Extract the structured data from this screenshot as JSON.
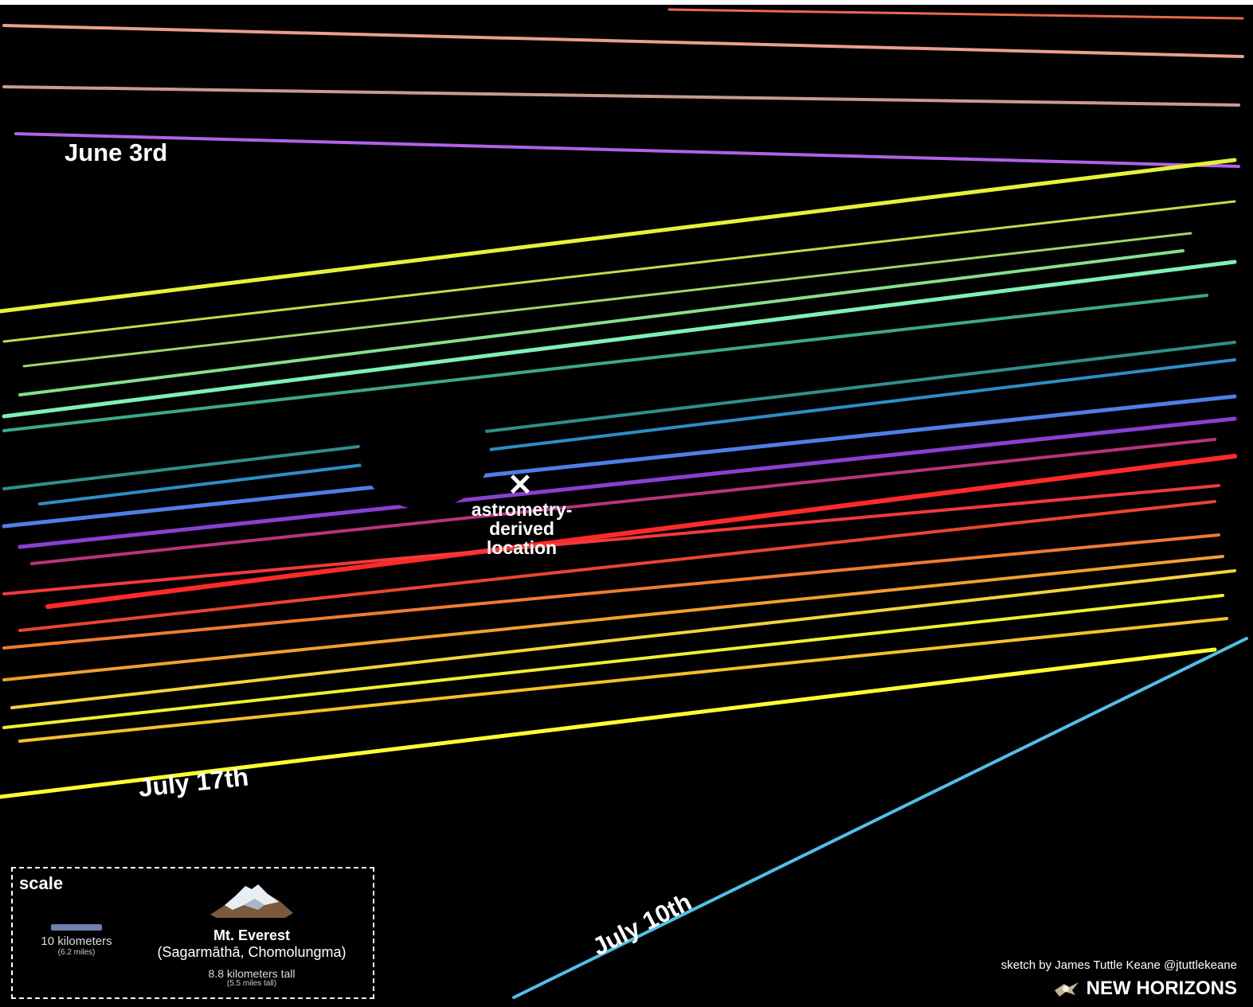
{
  "labels": {
    "start_date": "June 3rd",
    "end_date": "July 17th",
    "special_date": "July 10th",
    "center_marker": "✕",
    "center_label": [
      "astrometry-",
      "derived",
      "location"
    ]
  },
  "chords": [
    {
      "color": "#e86a4e"
    },
    {
      "color": "#e8a08c"
    },
    {
      "color": "#c99a90"
    },
    {
      "color": "#b062e6"
    },
    {
      "color": "#e6f238"
    },
    {
      "color": "#c9d84a"
    },
    {
      "color": "#9ed66a"
    },
    {
      "color": "#86e08a"
    },
    {
      "color": "#7ff0b6"
    },
    {
      "color": "#3da88a"
    },
    {
      "color": "#2f8f8c"
    },
    {
      "color": "#2d8ec4"
    },
    {
      "color": "#4f7ee6"
    },
    {
      "color": "#8a3fd0"
    },
    {
      "color": "#b8347c"
    },
    {
      "color": "#ff2a28"
    },
    {
      "color": "#f2393c"
    },
    {
      "color": "#e8452f"
    },
    {
      "color": "#f07a32"
    },
    {
      "color": "#f0a030"
    },
    {
      "color": "#f5d33a"
    },
    {
      "color": "#f0f030"
    },
    {
      "color": "#f5c02e"
    },
    {
      "color": "#ffff30"
    },
    {
      "color": "#50c0e8"
    }
  ],
  "scale": {
    "title": "scale",
    "distance": "10 kilometers",
    "distance_alt": "(6.2 miles)",
    "mountain_name": "Mt. Everest",
    "mountain_alt_names": "(Sagarmāthā, Chomolungma)",
    "mountain_height": "8.8 kilometers tall",
    "mountain_height_alt": "(5.5 miles tall)",
    "bar_color": "#6f7fae"
  },
  "credit": "sketch by James Tuttle Keane @jtuttlekeane",
  "logo_text": "NEW HORIZONS",
  "icons": [
    "spacecraft-icon",
    "mountain-icon",
    "x-mark-icon"
  ],
  "colors": {
    "background": "#000000",
    "text": "#ffffff"
  }
}
